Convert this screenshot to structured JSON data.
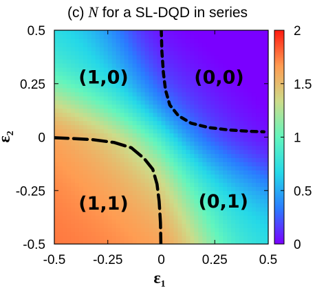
{
  "chart_data": {
    "type": "heatmap",
    "title": {
      "prefix": "(c) ",
      "symbol": "N",
      "suffix": " for a SL-DQD in series"
    },
    "xlabel": {
      "main": "ε",
      "sub": "1"
    },
    "ylabel": {
      "main": "ε",
      "sub": "2"
    },
    "xlim": [
      -0.5,
      0.5
    ],
    "ylim": [
      -0.5,
      0.5
    ],
    "x_ticks": [
      {
        "value": -0.5,
        "label": "-0.5"
      },
      {
        "value": -0.25,
        "label": "-0.25"
      },
      {
        "value": 0,
        "label": "0"
      },
      {
        "value": 0.25,
        "label": "0.25"
      },
      {
        "value": 0.5,
        "label": "0.5"
      }
    ],
    "y_ticks": [
      {
        "value": -0.5,
        "label": "-0.5"
      },
      {
        "value": -0.25,
        "label": "-0.25"
      },
      {
        "value": 0,
        "label": "0"
      },
      {
        "value": 0.25,
        "label": "0.25"
      },
      {
        "value": 0.5,
        "label": "0.5"
      }
    ],
    "colorbar": {
      "range": [
        0,
        2
      ],
      "ticks": [
        {
          "value": 0,
          "label": "0"
        },
        {
          "value": 0.5,
          "label": "0.5"
        },
        {
          "value": 1,
          "label": "1"
        },
        {
          "value": 1.5,
          "label": "1.5"
        },
        {
          "value": 2,
          "label": "2"
        }
      ],
      "palette": [
        "#7a00ff",
        "#2a7cff",
        "#25d8e8",
        "#63f5bd",
        "#ccdc8a",
        "#ff9c52",
        "#ff1a10"
      ]
    },
    "regions": [
      {
        "label": "(1,0)",
        "x": -0.27,
        "y": 0.28
      },
      {
        "label": "(0,0)",
        "x": 0.27,
        "y": 0.28
      },
      {
        "label": "(1,1)",
        "x": -0.27,
        "y": -0.31
      },
      {
        "label": "(0,1)",
        "x": 0.29,
        "y": -0.3
      }
    ],
    "boundaries": [
      {
        "name": "upper-right-boundary",
        "points": [
          [
            0.0,
            0.5
          ],
          [
            0.003,
            0.4
          ],
          [
            0.01,
            0.3
          ],
          [
            0.02,
            0.22
          ],
          [
            0.04,
            0.15
          ],
          [
            0.08,
            0.1
          ],
          [
            0.14,
            0.065
          ],
          [
            0.22,
            0.045
          ],
          [
            0.32,
            0.033
          ],
          [
            0.42,
            0.027
          ],
          [
            0.48,
            0.025
          ]
        ]
      },
      {
        "name": "lower-left-boundary",
        "points": [
          [
            -0.5,
            -0.003
          ],
          [
            -0.42,
            -0.006
          ],
          [
            -0.32,
            -0.012
          ],
          [
            -0.22,
            -0.025
          ],
          [
            -0.14,
            -0.05
          ],
          [
            -0.08,
            -0.1
          ],
          [
            -0.04,
            -0.15
          ],
          [
            -0.02,
            -0.22
          ],
          [
            -0.01,
            -0.3
          ],
          [
            -0.004,
            -0.4
          ],
          [
            -0.002,
            -0.5
          ]
        ]
      }
    ]
  }
}
